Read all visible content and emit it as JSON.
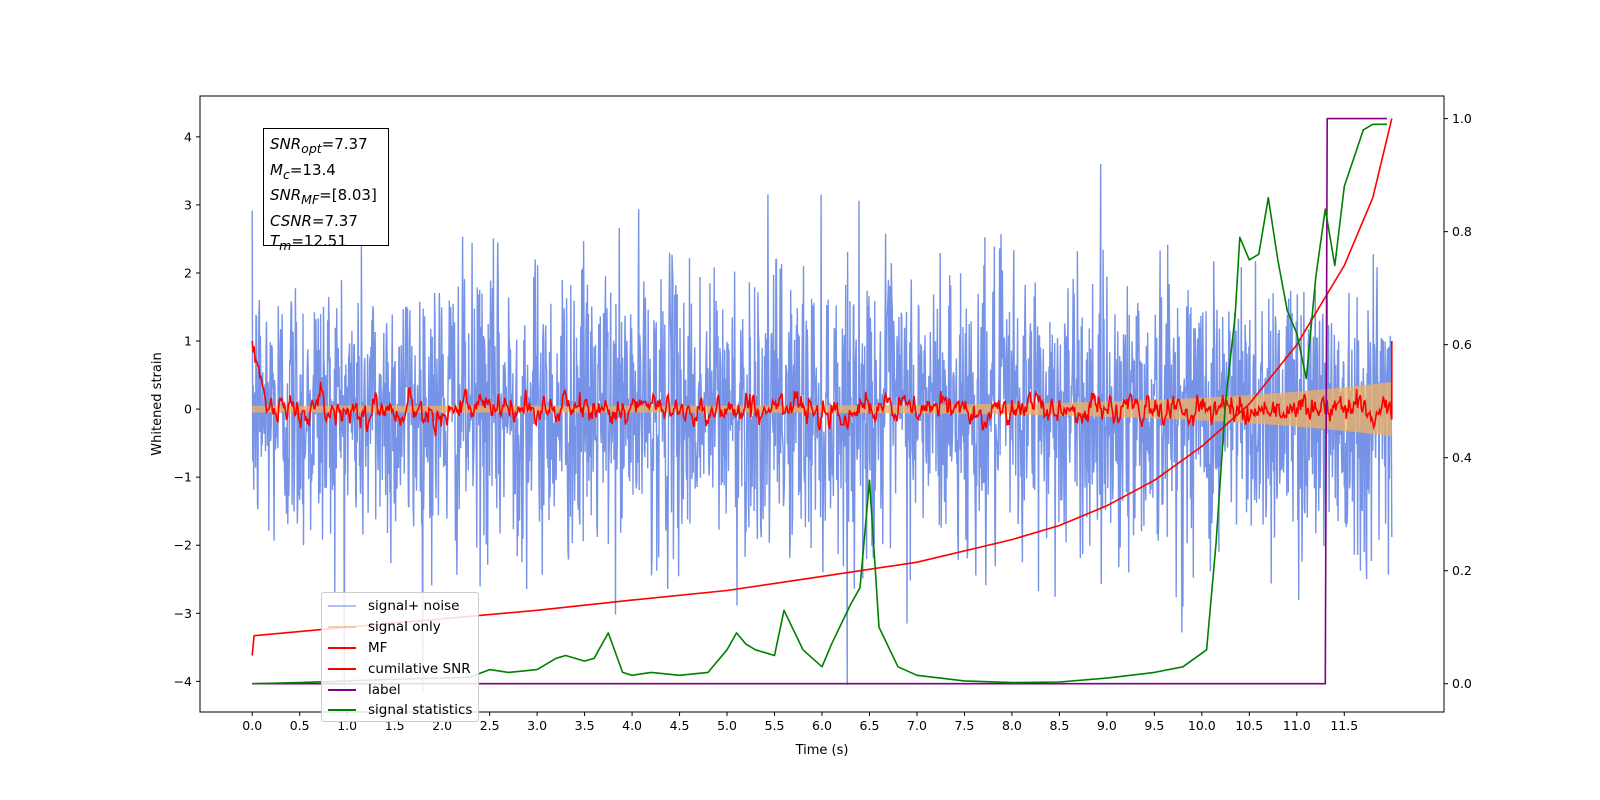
{
  "chart_data": {
    "type": "line",
    "xlabel": "Time (s)",
    "ylabel": "Whitened strain",
    "xlim": [
      -0.55,
      12.55
    ],
    "ylim": [
      -4.45,
      4.6
    ],
    "y2lim": [
      -0.05,
      1.04
    ],
    "x_ticks": [
      "0.0",
      "0.5",
      "1.0",
      "1.5",
      "2.0",
      "2.5",
      "3.0",
      "3.5",
      "4.0",
      "4.5",
      "5.0",
      "5.5",
      "6.0",
      "6.5",
      "7.0",
      "7.5",
      "8.0",
      "8.5",
      "9.0",
      "9.5",
      "10.0",
      "10.5",
      "11.0",
      "11.5"
    ],
    "y_ticks": [
      "−4",
      "−3",
      "−2",
      "−1",
      "0",
      "1",
      "2",
      "3",
      "4"
    ],
    "y2_ticks": [
      "0.0",
      "0.2",
      "0.4",
      "0.6",
      "0.8",
      "1.0"
    ],
    "annotations": [
      {
        "base": "SNR",
        "sub": "opt",
        "value": "=7.37"
      },
      {
        "base": "M",
        "sub": "c",
        "value": "=13.4"
      },
      {
        "base": "SNR",
        "sub": "MF",
        "value": "=[8.03]"
      },
      {
        "base": "CSNR",
        "sub": "",
        "value": "=7.37"
      },
      {
        "base": "T",
        "sub": "m",
        "value": "=12.51"
      }
    ],
    "legend_position": "lower-left",
    "series": [
      {
        "name": "signal+ noise",
        "color": "#6f8de6",
        "axis": "left",
        "description": "noise band approx ±2.5 with peaks to ±4.2",
        "t_range": [
          0.0,
          12.0
        ]
      },
      {
        "name": "signal only",
        "color": "#f0b060",
        "axis": "left",
        "description": "chirp amplitude growing from 0.05 to 0.4",
        "t_range": [
          0.0,
          12.0
        ]
      },
      {
        "name": "MF",
        "color": "#ff0000",
        "axis": "left",
        "start": 1.0,
        "typical_range": [
          -0.2,
          0.3
        ],
        "end": 1.0
      },
      {
        "name": "cumilative SNR",
        "color": "#ff0000",
        "axis": "right",
        "x": [
          0.0,
          0.02,
          1.0,
          2.0,
          3.0,
          4.0,
          5.0,
          6.0,
          7.0,
          8.0,
          8.5,
          9.0,
          9.5,
          10.0,
          10.5,
          11.0,
          11.5,
          11.8,
          12.0
        ],
        "y": [
          0.05,
          0.085,
          0.1,
          0.115,
          0.13,
          0.148,
          0.165,
          0.19,
          0.215,
          0.255,
          0.28,
          0.315,
          0.36,
          0.42,
          0.495,
          0.6,
          0.74,
          0.86,
          1.0
        ]
      },
      {
        "name": "label",
        "color": "#800080",
        "axis": "right",
        "x": [
          0.0,
          11.3,
          11.32,
          11.95
        ],
        "y": [
          0.0,
          0.0,
          1.0,
          1.0
        ]
      },
      {
        "name": "signal statistics",
        "color": "#008000",
        "axis": "right",
        "x": [
          0.0,
          0.5,
          1.0,
          1.5,
          2.0,
          2.3,
          2.5,
          2.7,
          3.0,
          3.2,
          3.3,
          3.5,
          3.6,
          3.75,
          3.9,
          4.0,
          4.2,
          4.5,
          4.8,
          5.0,
          5.1,
          5.2,
          5.3,
          5.5,
          5.6,
          5.8,
          6.0,
          6.1,
          6.3,
          6.4,
          6.5,
          6.6,
          6.8,
          7.0,
          7.5,
          8.0,
          8.5,
          9.0,
          9.5,
          9.8,
          10.05,
          10.15,
          10.25,
          10.35,
          10.4,
          10.5,
          10.6,
          10.7,
          10.8,
          10.9,
          11.0,
          11.1,
          11.2,
          11.3,
          11.4,
          11.5,
          11.6,
          11.7,
          11.8,
          11.95
        ],
        "y": [
          0.0,
          0.002,
          0.005,
          0.008,
          0.01,
          0.012,
          0.025,
          0.02,
          0.025,
          0.045,
          0.05,
          0.04,
          0.045,
          0.09,
          0.02,
          0.015,
          0.02,
          0.015,
          0.02,
          0.06,
          0.09,
          0.07,
          0.06,
          0.05,
          0.13,
          0.06,
          0.03,
          0.07,
          0.14,
          0.17,
          0.36,
          0.1,
          0.03,
          0.015,
          0.005,
          0.002,
          0.003,
          0.01,
          0.02,
          0.03,
          0.06,
          0.25,
          0.5,
          0.65,
          0.79,
          0.75,
          0.76,
          0.86,
          0.75,
          0.66,
          0.62,
          0.54,
          0.72,
          0.84,
          0.74,
          0.88,
          0.93,
          0.98,
          0.99,
          0.99
        ]
      }
    ]
  }
}
